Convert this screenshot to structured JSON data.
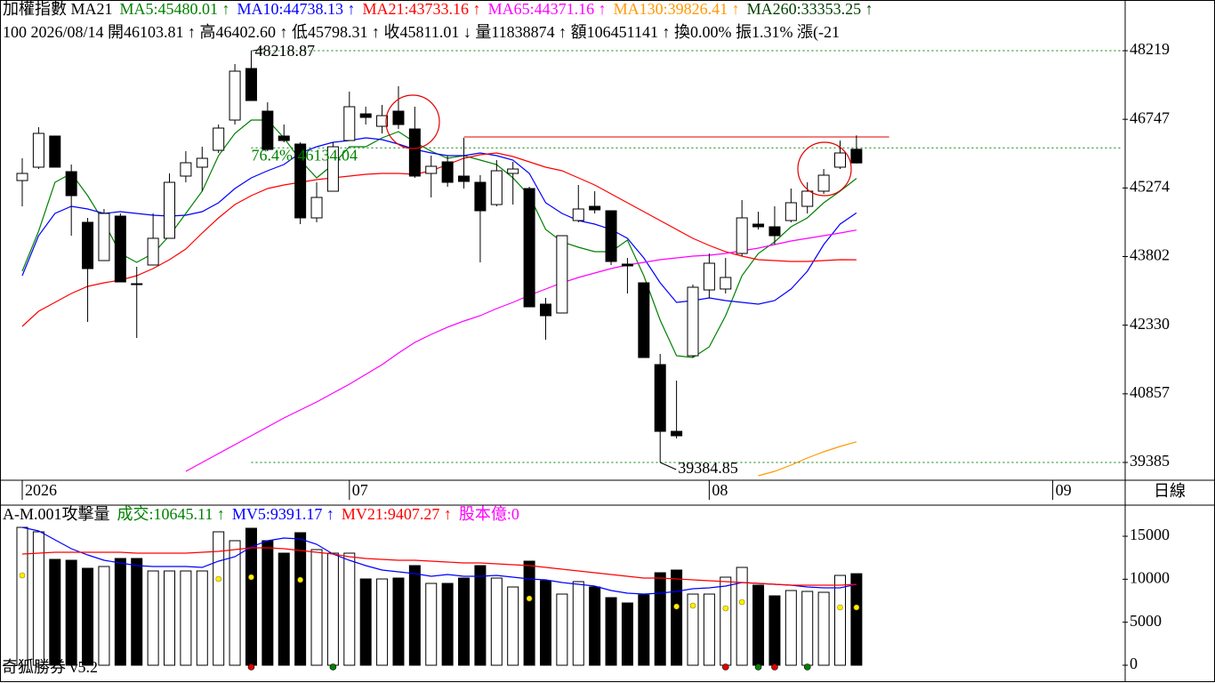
{
  "chart_data": [
    {
      "type": "candlestick",
      "header_parts": [
        {
          "text": "加權指數 MA21",
          "color": "#000000"
        },
        {
          "text": "MA5:45480.01 ↑",
          "color": "#008000"
        },
        {
          "text": "MA10:44738.13 ↑",
          "color": "#0000ff"
        },
        {
          "text": "MA21:43733.16 ↑",
          "color": "#ff0000"
        },
        {
          "text": "MA65:44371.16 ↑",
          "color": "#ff00ff"
        },
        {
          "text": "MA130:39826.41 ↑",
          "color": "#ff9900"
        },
        {
          "text": "MA260:33353.25 ↑",
          "color": "#004000"
        }
      ],
      "info_line": "100 2026/08/14 開46103.81 ↑ 高46402.60 ↑ 低45798.31 ↑ 收45811.01 ↓ 量11838874 ↑ 額106451141 ↑ 換0.00% 振1.31% 漲(-21",
      "categories": [
        null,
        null,
        null,
        null,
        null,
        null,
        null,
        null,
        null,
        null,
        null,
        null,
        null,
        null,
        null,
        null,
        null,
        null,
        null,
        null,
        null,
        null,
        null,
        null,
        null,
        null,
        null,
        null,
        null,
        null,
        null,
        null,
        null,
        null,
        null,
        null,
        null,
        null,
        null,
        null,
        null,
        null,
        null,
        null,
        null,
        null,
        null,
        null,
        null,
        null,
        null,
        null
      ],
      "open": [
        45433,
        45720,
        46388,
        45624,
        44537,
        43716,
        44670,
        43220,
        43621,
        44194,
        45529,
        45720,
        46082,
        46731,
        47837,
        46922,
        46388,
        46216,
        44632,
        45204,
        46292,
        46864,
        46597,
        46922,
        46540,
        45586,
        45834,
        45529,
        45395,
        44918,
        45586,
        45261,
        42781,
        42591,
        44575,
        44880,
        44785,
        43640,
        43239,
        41484,
        40052,
        41674,
        43086,
        43106,
        43869,
        44498,
        44441,
        44575,
        44880,
        45205,
        45720,
        46103.81
      ],
      "high": [
        45910,
        46578,
        46388,
        45777,
        44632,
        44823,
        44728,
        43583,
        44728,
        45586,
        46063,
        46158,
        46635,
        47933,
        48218.87,
        47112,
        46635,
        46254,
        45395,
        46254,
        47341,
        47017,
        47055,
        47456,
        47017,
        45968,
        45968,
        46349,
        45548,
        45872,
        45834,
        45300,
        42915,
        44250,
        45338,
        45204,
        44785,
        43773,
        43239,
        41713,
        41140,
        43201,
        43869,
        43773,
        45014,
        44765,
        44880,
        45262,
        45395,
        45681,
        46292,
        46402.6
      ],
      "low": [
        44880,
        45681,
        45720,
        44250,
        42400,
        43716,
        43258,
        42056,
        43621,
        44193,
        45395,
        45204,
        46025,
        46635,
        47150,
        46063,
        46254,
        44498,
        44537,
        45204,
        46292,
        46635,
        46445,
        46540,
        45491,
        45071,
        45300,
        45262,
        43678,
        44880,
        44918,
        42724,
        42018,
        42591,
        44537,
        44727,
        43621,
        43010,
        41636,
        39384.85,
        39900,
        41636,
        42915,
        43010,
        43812,
        44384,
        44060,
        44537,
        44727,
        45147,
        45681,
        45798.31
      ],
      "close": [
        45586,
        46445,
        45720,
        45109,
        43544,
        44728,
        43258,
        43200,
        44194,
        45395,
        45815,
        45910,
        46559,
        47780,
        47150,
        46101,
        46292,
        44632,
        45071,
        46158,
        47017,
        46788,
        46826,
        46635,
        45529,
        45739,
        45395,
        45414,
        44785,
        45643,
        45681,
        42724,
        42533,
        44250,
        44823,
        44804,
        43697,
        43602,
        41636,
        40052,
        39957,
        43144,
        43659,
        43354,
        44632,
        44441,
        44250,
        44957,
        45205,
        45548,
        46025,
        45811.01
      ],
      "lines": [
        {
          "color": "#008000",
          "values": [
            43487,
            44346,
            45395,
            45586,
            45109,
            44537,
            43869,
            43678,
            43869,
            44250,
            44727,
            45204,
            45968,
            46445,
            46731,
            46731,
            46349,
            45872,
            45491,
            45777,
            46158,
            46158,
            46349,
            46483,
            46254,
            46063,
            45910,
            45968,
            45872,
            45777,
            45491,
            45109,
            44384,
            44117,
            44002,
            43907,
            43907,
            44155,
            43392,
            42438,
            41674,
            41636,
            41865,
            42533,
            43392,
            43869,
            44117,
            44441,
            44632,
            44956,
            45204,
            45480.01
          ]
        },
        {
          "color": "#0000ff",
          "values": [
            43392,
            44250,
            44727,
            44880,
            44823,
            44727,
            44765,
            44727,
            44689,
            44670,
            44689,
            44765,
            44956,
            45262,
            45491,
            45643,
            45777,
            46025,
            46158,
            46254,
            46292,
            46349,
            46311,
            46216,
            46101,
            46025,
            45968,
            45968,
            46025,
            45968,
            45872,
            45586,
            44956,
            44727,
            44575,
            44498,
            44384,
            44193,
            43773,
            43239,
            42819,
            42857,
            42915,
            42857,
            42819,
            42781,
            42857,
            43106,
            43487,
            44060,
            44498,
            44738.13
          ]
        },
        {
          "color": "#ff0000",
          "values": [
            42304,
            42629,
            42819,
            43010,
            43163,
            43239,
            43296,
            43392,
            43544,
            43735,
            43964,
            44307,
            44632,
            44918,
            45109,
            45262,
            45338,
            45395,
            45453,
            45491,
            45529,
            45567,
            45586,
            45586,
            45567,
            45643,
            45777,
            45910,
            45987,
            46025,
            45949,
            45834,
            45720,
            45643,
            45491,
            45338,
            45147,
            44956,
            44765,
            44575,
            44384,
            44193,
            44040,
            43907,
            43812,
            43735,
            43716,
            43697,
            43697,
            43716,
            43735,
            43733.16
          ]
        },
        {
          "color": "#ff00ff",
          "values": [
            null,
            null,
            null,
            null,
            null,
            null,
            null,
            null,
            null,
            null,
            39194,
            39385,
            39575,
            39766,
            39957,
            40148,
            40339,
            40511,
            40683,
            40873,
            41064,
            41274,
            41484,
            41732,
            41961,
            42133,
            42286,
            42419,
            42533,
            42686,
            42819,
            42972,
            43106,
            43239,
            43354,
            43449,
            43544,
            43621,
            43678,
            43735,
            43773,
            43812,
            43831,
            43869,
            43926,
            43983,
            44060,
            44136,
            44193,
            44250,
            44307,
            44371.16
          ]
        },
        {
          "color": "#ff9900",
          "values": [
            null,
            null,
            null,
            null,
            null,
            null,
            null,
            null,
            null,
            null,
            null,
            null,
            null,
            null,
            null,
            null,
            null,
            null,
            null,
            null,
            null,
            null,
            null,
            null,
            null,
            null,
            null,
            null,
            null,
            null,
            null,
            null,
            null,
            null,
            null,
            null,
            null,
            null,
            null,
            null,
            null,
            null,
            null,
            null,
            null,
            39098,
            39194,
            39327,
            39480,
            39614,
            39728,
            39826.41
          ]
        }
      ],
      "ylim": [
        39003,
        49307
      ],
      "yticks": [
        48219,
        46747,
        45274,
        43802,
        42330,
        40857,
        39385
      ],
      "x_labels": [
        {
          "label": "2026",
          "index": 0
        },
        {
          "label": "07",
          "index": 20
        },
        {
          "label": "08",
          "index": 42
        },
        {
          "label": "09",
          "index": 63
        }
      ],
      "period_label": "日線",
      "high_label": {
        "value": 48218.87,
        "index": 14
      },
      "low_label": {
        "value": 39384.85,
        "index": 39
      },
      "fib": {
        "label": "76.4%",
        "value": 46134.04
      },
      "resistance": {
        "value": 46368,
        "start_index": 27,
        "end_index": 53
      }
    },
    {
      "type": "bar",
      "header_parts": [
        {
          "text": "A-M.001攻擊量",
          "color": "#000000"
        },
        {
          "text": "成交:10645.11 ↑",
          "color": "#008000"
        },
        {
          "text": "MV5:9391.17 ↑",
          "color": "#0000ff"
        },
        {
          "text": "MV21:9407.27 ↑",
          "color": "#ff0000"
        },
        {
          "text": "股本億:0",
          "color": "#ff00ff"
        }
      ],
      "values": [
        16034,
        15517,
        12310,
        12207,
        11276,
        11483,
        12414,
        12414,
        10965,
        10965,
        10965,
        10965,
        15517,
        14483,
        15931,
        14483,
        13034,
        15414,
        13448,
        13034,
        13034,
        10034,
        10034,
        10138,
        11586,
        9517,
        9517,
        10138,
        11586,
        10138,
        9103,
        12103,
        9828,
        8276,
        9724,
        9103,
        7862,
        7241,
        8172,
        10758,
        11069,
        8276,
        8276,
        10241,
        11379,
        9310,
        8069,
        8690,
        8586,
        8483,
        10448,
        10645.11
      ],
      "lines": [
        {
          "color": "#0000ff",
          "values": [
            16034,
            15621,
            14586,
            13552,
            12828,
            12207,
            11897,
            11586,
            11483,
            11483,
            11483,
            11379,
            12103,
            12621,
            13759,
            14483,
            14793,
            14690,
            14069,
            12931,
            12207,
            11586,
            11069,
            10862,
            10655,
            10345,
            10552,
            10345,
            10345,
            10448,
            10241,
            10034,
            9931,
            9621,
            9414,
            9207,
            8690,
            8379,
            8276,
            8379,
            8586,
            8897,
            8997,
            9207,
            9621,
            9517,
            9414,
            9310,
            9103,
            8997,
            8997,
            9391.17
          ]
        },
        {
          "color": "#ff0000",
          "values": [
            12931,
            13034,
            13138,
            13138,
            13138,
            13138,
            13138,
            13034,
            13034,
            13034,
            13034,
            13138,
            13241,
            13448,
            13655,
            13655,
            13552,
            13345,
            13138,
            12931,
            12621,
            12414,
            12310,
            12207,
            12207,
            12103,
            12000,
            11897,
            11897,
            11793,
            11690,
            11586,
            11379,
            11172,
            10965,
            10758,
            10552,
            10345,
            10138,
            10138,
            10034,
            9931,
            9828,
            9724,
            9621,
            9517,
            9414,
            9310,
            9310,
            9310,
            9310,
            9407.27
          ]
        }
      ],
      "dots": {
        "color": "#ffee00",
        "values": [
          10448,
          null,
          null,
          null,
          null,
          null,
          null,
          null,
          null,
          null,
          null,
          null,
          10034,
          null,
          10241,
          null,
          null,
          9931,
          null,
          null,
          null,
          null,
          null,
          null,
          null,
          null,
          null,
          null,
          null,
          null,
          null,
          7759,
          null,
          null,
          null,
          null,
          null,
          null,
          null,
          null,
          6828,
          6931,
          null,
          6621,
          7345,
          null,
          null,
          null,
          null,
          null,
          6724,
          6724
        ]
      },
      "red_dots": [
        14,
        43,
        46
      ],
      "green_dots": [
        19,
        45,
        48
      ],
      "ylim": [
        -1860,
        18620
      ],
      "yticks": [
        15000,
        10000,
        5000,
        0
      ]
    }
  ],
  "footer": "奇狐勝券 v5.2"
}
